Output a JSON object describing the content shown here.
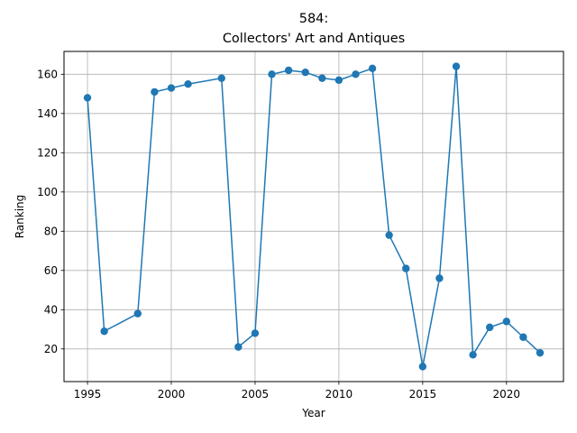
{
  "chart_data": {
    "type": "line",
    "title_line1": "584:",
    "title_line2": "Collectors' Art and Antiques",
    "xlabel": "Year",
    "ylabel": "Ranking",
    "xlim": [
      1993.6,
      2023.4
    ],
    "ylim": [
      3.35,
      171.65
    ],
    "xticks": [
      1995,
      2000,
      2005,
      2010,
      2015,
      2020
    ],
    "yticks": [
      20,
      40,
      60,
      80,
      100,
      120,
      140,
      160
    ],
    "grid": true,
    "line_color": "#1f77b4",
    "series": [
      {
        "x": [
          1995,
          1996,
          1998,
          1999,
          2000,
          2001,
          2003,
          2004,
          2005,
          2006,
          2007,
          2008,
          2009,
          2010,
          2011,
          2012,
          2013,
          2014,
          2015,
          2016,
          2017,
          2018,
          2019,
          2020,
          2021,
          2022
        ],
        "values": [
          148,
          29,
          38,
          151,
          153,
          155,
          158,
          21,
          28,
          160,
          162,
          161,
          158,
          157,
          160,
          163,
          78,
          61,
          11,
          56,
          164,
          17,
          31,
          34,
          26,
          18
        ]
      }
    ]
  }
}
